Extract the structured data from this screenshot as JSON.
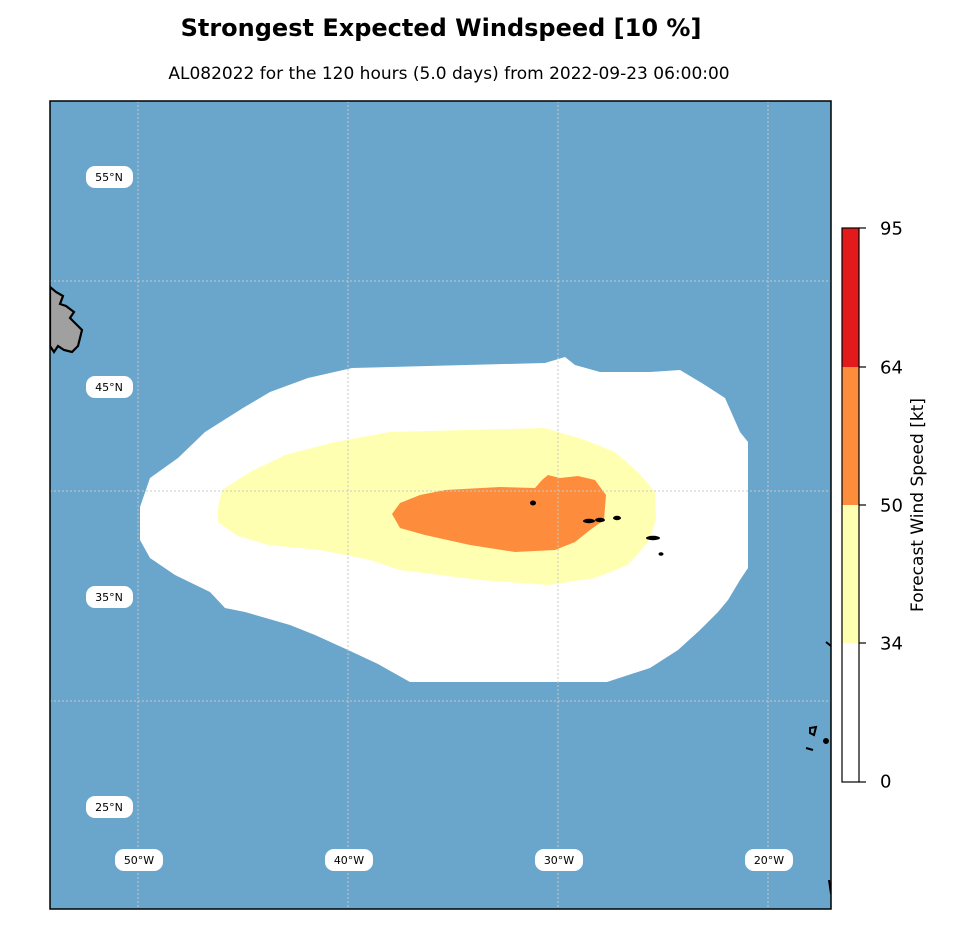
{
  "title": "Strongest Expected Windspeed [10 %]",
  "subtitle": "AL082022 for the 120 hours (5.0 days) from 2022-09-23 06:00:00",
  "map": {
    "ocean_color": "#6aa6cb",
    "grid_color": "#c8c8c8",
    "lat_labels": [
      "55°N",
      "45°N",
      "35°N",
      "25°N"
    ],
    "lon_labels": [
      "50°W",
      "40°W",
      "30°W",
      "20°W"
    ]
  },
  "wind_bands": [
    {
      "name": "tropical-storm-34kt",
      "threshold": "34",
      "color": "#ffffff"
    },
    {
      "name": "50kt",
      "threshold": "50",
      "color": "#ffffb2"
    },
    {
      "name": "64kt",
      "threshold": "64",
      "color": "#fd8d3c"
    }
  ],
  "colorbar": {
    "label": "Forecast Wind Speed [kt]",
    "ticks": [
      "0",
      "34",
      "50",
      "64",
      "95"
    ],
    "colors": [
      "#ffffff",
      "#ffffb2",
      "#fd8d3c",
      "#e31a1c"
    ]
  }
}
